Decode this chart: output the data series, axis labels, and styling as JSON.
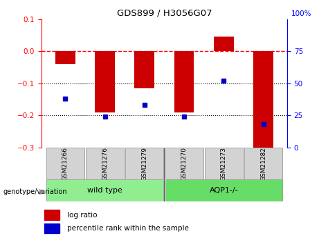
{
  "title": "GDS899 / H3056G07",
  "samples": [
    "GSM21266",
    "GSM21276",
    "GSM21279",
    "GSM21270",
    "GSM21273",
    "GSM21282"
  ],
  "log_ratios": [
    -0.04,
    -0.19,
    -0.115,
    -0.19,
    0.045,
    -0.32
  ],
  "percentile_ranks": [
    38,
    24,
    33,
    24,
    52,
    18
  ],
  "groups": [
    {
      "label": "wild type",
      "start": 0,
      "end": 2,
      "color": "#90EE90"
    },
    {
      "label": "AQP1-/-",
      "start": 3,
      "end": 5,
      "color": "#66DD66"
    }
  ],
  "bar_color": "#CC0000",
  "dot_color": "#0000CC",
  "ylim_left": [
    -0.3,
    0.1
  ],
  "ylim_right": [
    0,
    100
  ],
  "yticks_left": [
    -0.3,
    -0.2,
    -0.1,
    0.0,
    0.1
  ],
  "yticks_right": [
    0,
    25,
    50,
    75
  ],
  "hlines_dotted": [
    -0.1,
    -0.2
  ],
  "genotype_label": "genotype/variation",
  "legend_items": [
    {
      "color": "#CC0000",
      "label": "log ratio"
    },
    {
      "color": "#0000CC",
      "label": "percentile rank within the sample"
    }
  ]
}
